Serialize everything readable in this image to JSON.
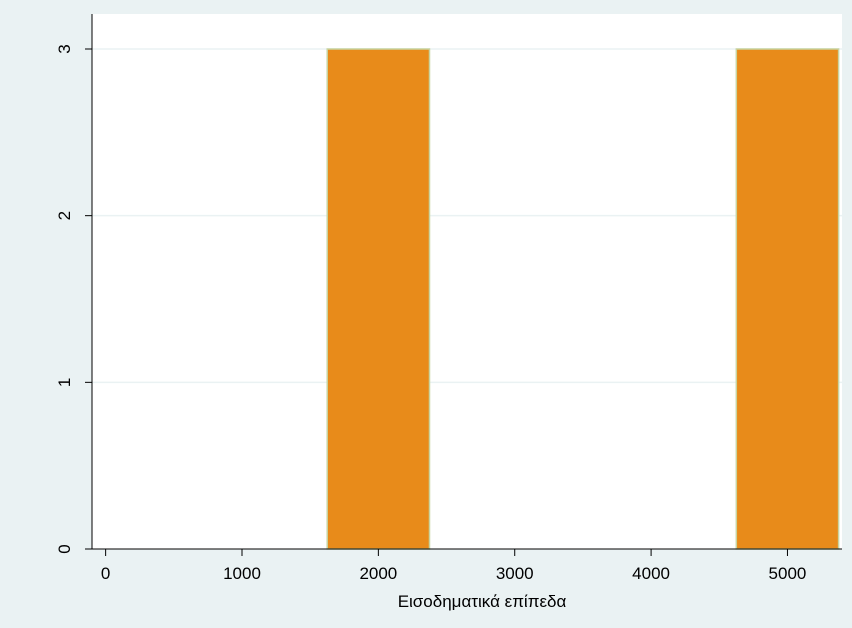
{
  "chart_data": {
    "type": "bar",
    "title": "",
    "xlabel": "Εισοδηματικά επίπεδα",
    "ylabel": "",
    "x_ticks": [
      "0",
      "1000",
      "2000",
      "3000",
      "4000",
      "5000"
    ],
    "y_ticks": [
      "0",
      "1",
      "2",
      "3"
    ],
    "xlim": [
      -100,
      5400
    ],
    "ylim": [
      0,
      3
    ],
    "bars": [
      {
        "x_center": 2000,
        "x_start": 1625,
        "x_end": 2375,
        "value": 3
      },
      {
        "x_center": 5000,
        "x_start": 4625,
        "x_end": 5375,
        "value": 3
      }
    ],
    "grid": true,
    "legend": "none"
  },
  "colors": {
    "background": "#eaf2f3",
    "plot_area": "#ffffff",
    "bar_fill": "#e88b1a",
    "bar_edge": "#c8d4a0",
    "gridline": "#eaf2f3",
    "axis": "#000000"
  }
}
